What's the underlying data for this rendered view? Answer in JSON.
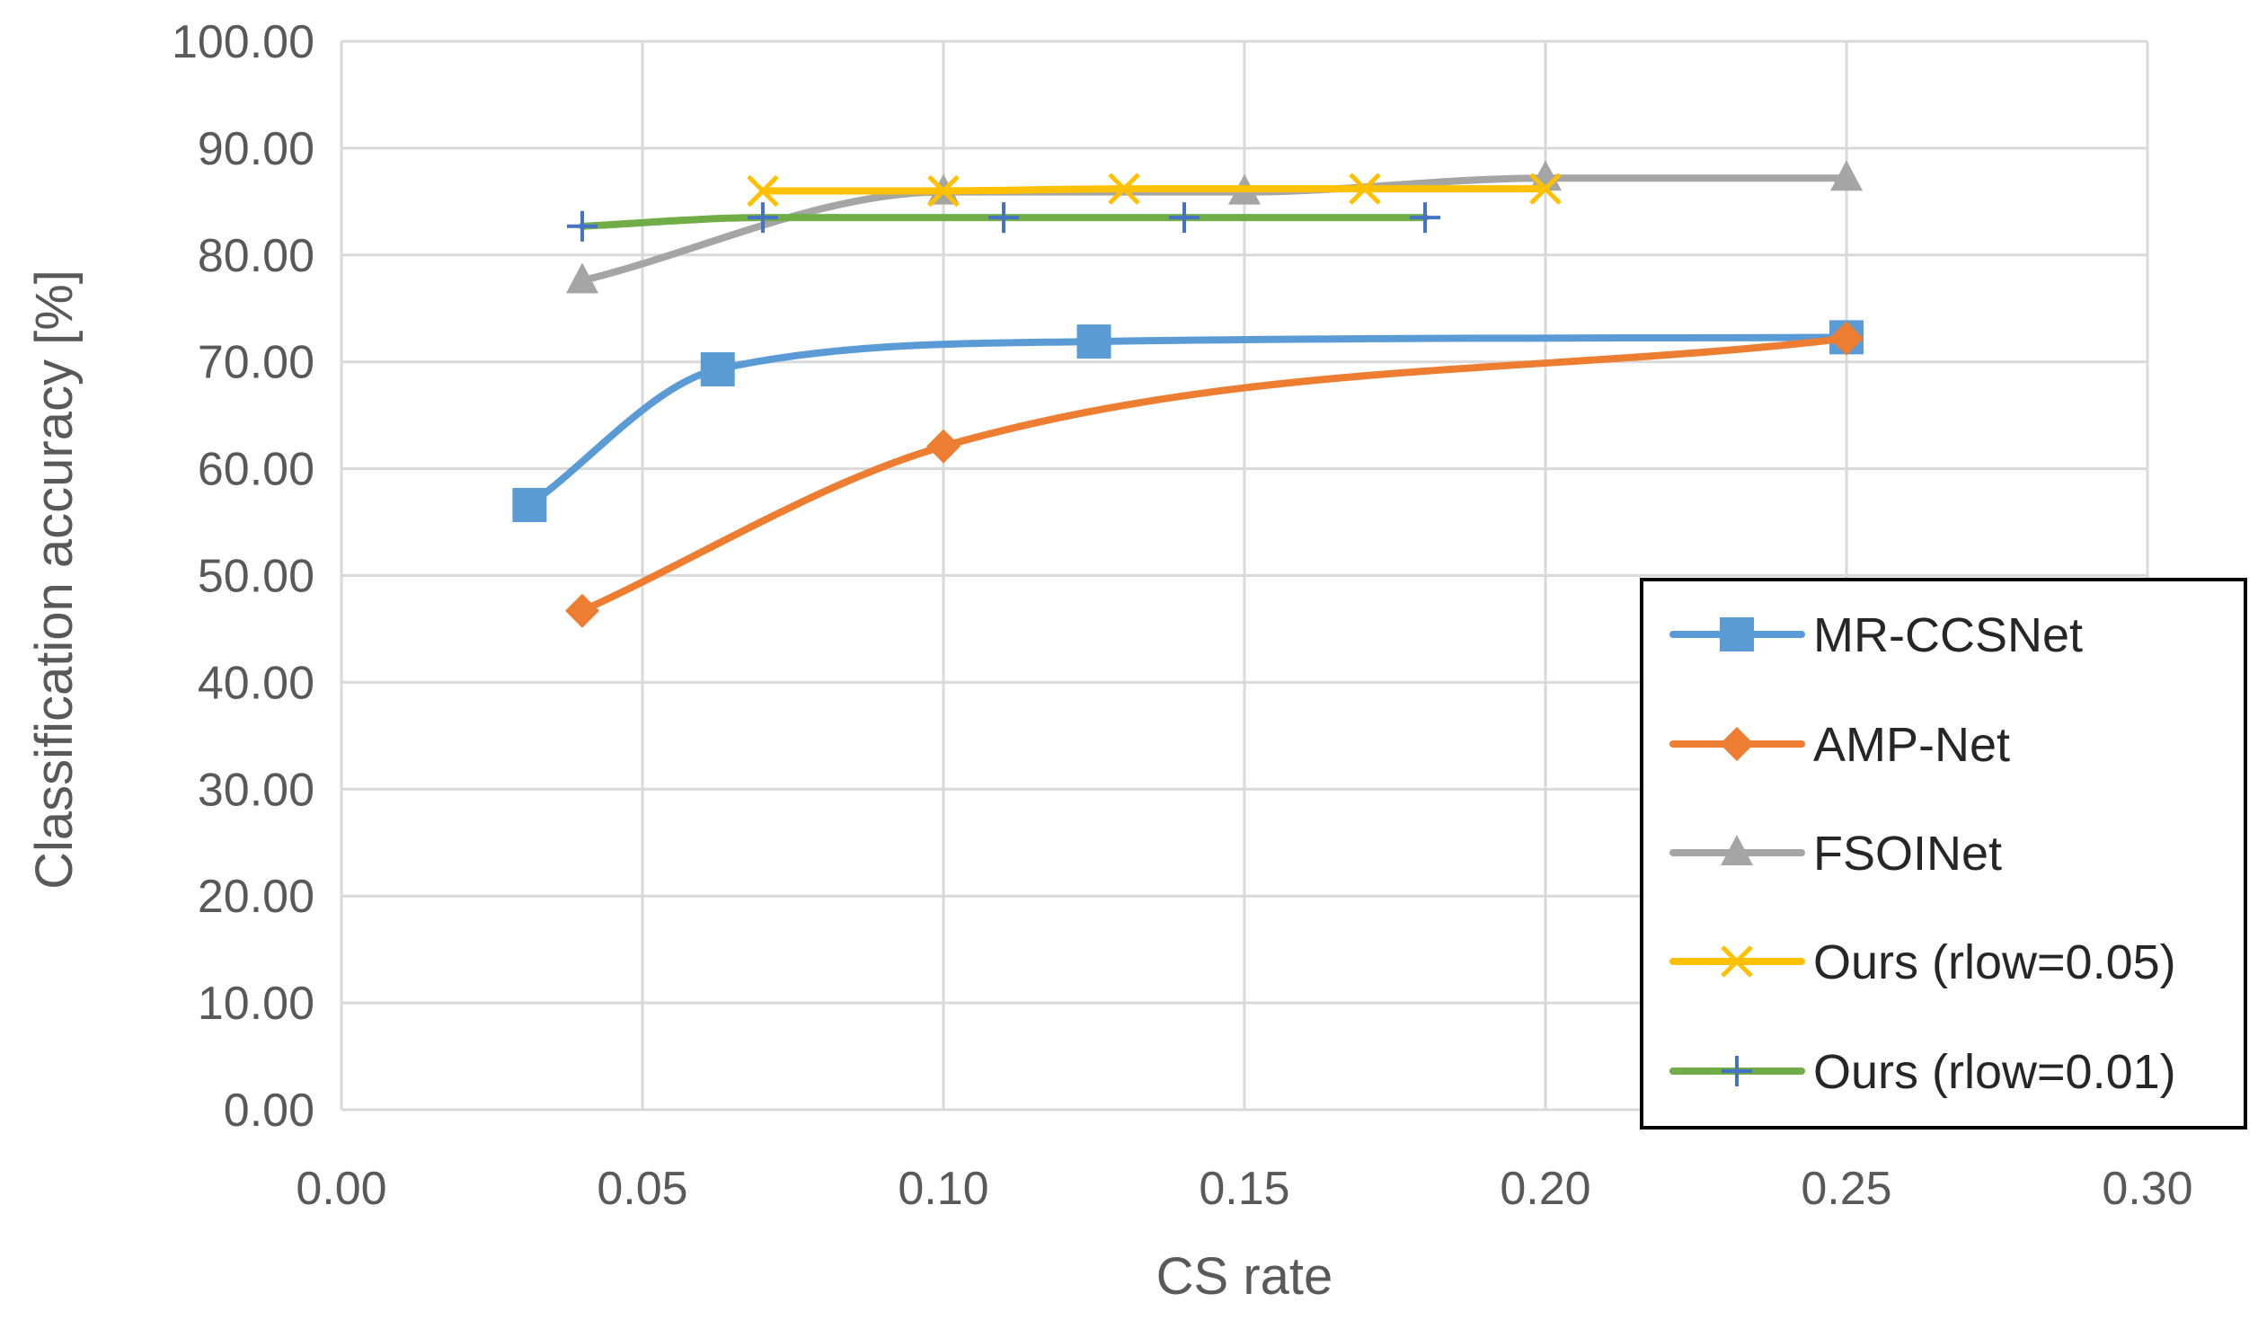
{
  "chart_data": {
    "type": "line",
    "title": "",
    "xlabel": "CS rate",
    "ylabel": "Classification accuracy [%]",
    "xlim": [
      0,
      0.3
    ],
    "ylim": [
      0,
      100
    ],
    "xticks": [
      0.0,
      0.05,
      0.1,
      0.15,
      0.2,
      0.25,
      0.3
    ],
    "yticks": [
      0,
      10,
      20,
      30,
      40,
      50,
      60,
      70,
      80,
      90,
      100
    ],
    "xtick_labels": [
      "0.00",
      "0.05",
      "0.10",
      "0.15",
      "0.20",
      "0.25",
      "0.30"
    ],
    "ytick_labels": [
      "0.00",
      "10.00",
      "20.00",
      "30.00",
      "40.00",
      "50.00",
      "60.00",
      "70.00",
      "80.00",
      "90.00",
      "100.00"
    ],
    "grid": true,
    "smooth": true,
    "legend_position": "bottom-right",
    "series": [
      {
        "name": "MR-CCSNet",
        "color": "#5b9bd5",
        "marker": "square",
        "x": [
          0.03125,
          0.0625,
          0.125,
          0.25
        ],
        "y": [
          56.6,
          69.3,
          71.9,
          72.3
        ]
      },
      {
        "name": "AMP-Net",
        "color": "#ed7d31",
        "marker": "diamond",
        "x": [
          0.04,
          0.1,
          0.25
        ],
        "y": [
          46.7,
          62.1,
          72.2
        ]
      },
      {
        "name": "FSOINet",
        "color": "#a5a5a5",
        "marker": "triangle",
        "x": [
          0.04,
          0.1,
          0.15,
          0.2,
          0.25
        ],
        "y": [
          77.6,
          85.9,
          85.9,
          87.2,
          87.2
        ]
      },
      {
        "name": "Ours (rlow=0.05)",
        "color": "#ffc000",
        "marker": "x",
        "x": [
          0.07,
          0.1,
          0.13,
          0.17,
          0.2
        ],
        "y": [
          86.0,
          86.0,
          86.2,
          86.2,
          86.2
        ]
      },
      {
        "name": "Ours (rlow=0.01)",
        "color": "#70ad47",
        "marker_color": "#4472c4",
        "marker": "plus",
        "x": [
          0.04,
          0.07,
          0.11,
          0.14,
          0.18
        ],
        "y": [
          82.7,
          83.5,
          83.5,
          83.5,
          83.5
        ]
      }
    ]
  }
}
